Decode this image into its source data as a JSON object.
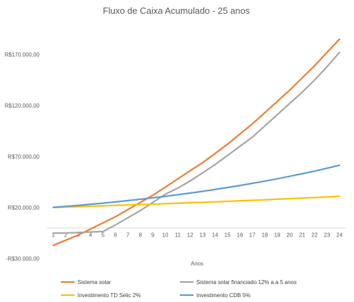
{
  "chart_data": {
    "type": "line",
    "title": "Fluxo de Caixa Acumulado - 25 anos",
    "xlabel": "Anos",
    "ylabel": "",
    "x": [
      1,
      2,
      3,
      4,
      5,
      6,
      7,
      8,
      9,
      10,
      11,
      12,
      13,
      14,
      15,
      16,
      17,
      18,
      19,
      20,
      21,
      22,
      23,
      24
    ],
    "ylim": [
      -30000,
      195000
    ],
    "yticks": [
      {
        "value": 170000,
        "label": "R$170.000,00"
      },
      {
        "value": 120000,
        "label": "R$120.000,00"
      },
      {
        "value": 70000,
        "label": "R$70.000,00"
      },
      {
        "value": 20000,
        "label": "R$20.000,00"
      },
      {
        "value": -30000,
        "label": "-R$30.000,00"
      }
    ],
    "xaxis_at": 0,
    "grid": false,
    "legend_position": "bottom",
    "series": [
      {
        "name": "Sistema solar",
        "color": "#ED7D31",
        "values": [
          -17000,
          -12000,
          -7000,
          -1000,
          5000,
          11000,
          18000,
          25000,
          32000,
          40000,
          48000,
          56000,
          64000,
          73000,
          82000,
          92000,
          102000,
          113000,
          124000,
          135000,
          147000,
          159000,
          172000,
          185000
        ]
      },
      {
        "name": "Sistema solar financiado 12% a.a 5 anos",
        "color": "#A5A5A5",
        "values": [
          -5000,
          -5000,
          -4500,
          -4000,
          -3500,
          3000,
          10000,
          17000,
          25000,
          33000,
          39000,
          46000,
          54000,
          62000,
          71000,
          80000,
          89000,
          100000,
          111000,
          122000,
          133000,
          145000,
          158000,
          172000
        ]
      },
      {
        "name": "Investimento TD Selic 2%",
        "color": "#FFC000",
        "values": [
          20100,
          20500,
          20900,
          21300,
          21700,
          22100,
          22500,
          22900,
          23300,
          23800,
          24200,
          24700,
          25100,
          25600,
          26100,
          26600,
          27100,
          27600,
          28200,
          28700,
          29300,
          29800,
          30400,
          31000
        ]
      },
      {
        "name": "Investimento CDB 5%",
        "color": "#5B9BD5",
        "values": [
          20200,
          21100,
          22100,
          23200,
          24300,
          25500,
          26800,
          28100,
          29500,
          31000,
          32600,
          34200,
          35900,
          37700,
          39600,
          41600,
          43700,
          45900,
          48200,
          50600,
          53100,
          55700,
          58500,
          61500
        ]
      }
    ]
  }
}
